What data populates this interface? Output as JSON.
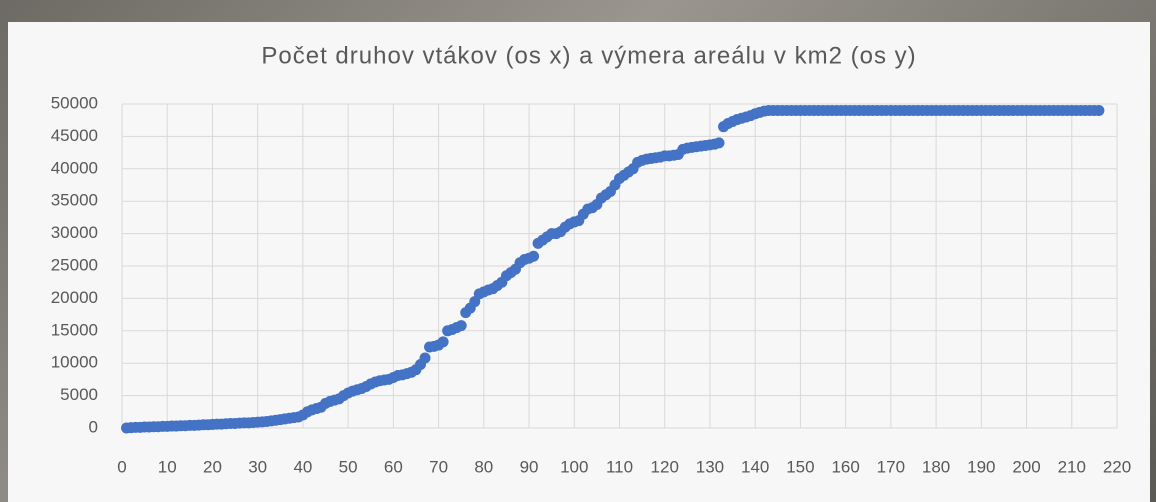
{
  "chart_data": {
    "type": "scatter",
    "title": "Počet druhov vtákov (os x) a výmera areálu v km2 (os y)",
    "x": [
      1,
      2,
      3,
      4,
      5,
      6,
      7,
      8,
      9,
      10,
      11,
      12,
      13,
      14,
      15,
      16,
      17,
      18,
      19,
      20,
      21,
      22,
      23,
      24,
      25,
      26,
      27,
      28,
      29,
      30,
      31,
      32,
      33,
      34,
      35,
      36,
      37,
      38,
      39,
      40,
      41,
      42,
      43,
      44,
      45,
      46,
      47,
      48,
      49,
      50,
      51,
      52,
      53,
      54,
      55,
      56,
      57,
      58,
      59,
      60,
      61,
      62,
      63,
      64,
      65,
      66,
      67,
      68,
      69,
      70,
      71,
      72,
      73,
      74,
      75,
      76,
      77,
      78,
      79,
      80,
      81,
      82,
      83,
      84,
      85,
      86,
      87,
      88,
      89,
      90,
      91,
      92,
      93,
      94,
      95,
      96,
      97,
      98,
      99,
      100,
      101,
      102,
      103,
      104,
      105,
      106,
      107,
      108,
      109,
      110,
      111,
      112,
      113,
      114,
      115,
      116,
      117,
      118,
      119,
      120,
      121,
      122,
      123,
      124,
      125,
      126,
      127,
      128,
      129,
      130,
      131,
      132,
      133,
      134,
      135,
      136,
      137,
      138,
      139,
      140,
      141,
      142,
      143,
      144,
      145,
      146,
      147,
      148,
      149,
      150,
      151,
      152,
      153,
      154,
      155,
      156,
      157,
      158,
      159,
      160,
      161,
      162,
      163,
      164,
      165,
      166,
      167,
      168,
      169,
      170,
      171,
      172,
      173,
      174,
      175,
      176,
      177,
      178,
      179,
      180,
      181,
      182,
      183,
      184,
      185,
      186,
      187,
      188,
      189,
      190,
      191,
      192,
      193,
      194,
      195,
      196,
      197,
      198,
      199,
      200,
      201,
      202,
      203,
      204,
      205,
      206,
      207,
      208,
      209,
      210,
      211,
      212,
      213,
      214,
      215,
      216
    ],
    "values": [
      0,
      50,
      100,
      100,
      150,
      150,
      200,
      200,
      250,
      250,
      300,
      300,
      350,
      350,
      400,
      400,
      450,
      500,
      500,
      550,
      600,
      600,
      650,
      700,
      700,
      750,
      800,
      800,
      850,
      900,
      950,
      1000,
      1100,
      1200,
      1300,
      1400,
      1500,
      1600,
      1700,
      2000,
      2500,
      2800,
      3000,
      3200,
      3800,
      4100,
      4300,
      4500,
      5000,
      5400,
      5700,
      5900,
      6100,
      6400,
      6800,
      7100,
      7300,
      7400,
      7500,
      7800,
      8100,
      8200,
      8400,
      8600,
      9000,
      9800,
      10800,
      12500,
      12600,
      12800,
      13300,
      15000,
      15200,
      15500,
      15800,
      17800,
      18500,
      19500,
      20700,
      21000,
      21300,
      21500,
      22000,
      22500,
      23500,
      24000,
      24500,
      25500,
      26000,
      26200,
      26500,
      28500,
      29000,
      29500,
      30000,
      30000,
      30300,
      31000,
      31500,
      31800,
      32000,
      33000,
      33800,
      34000,
      34500,
      35500,
      36000,
      36500,
      37500,
      38500,
      39000,
      39500,
      40000,
      41000,
      41300,
      41500,
      41600,
      41700,
      41800,
      42000,
      42000,
      42100,
      42200,
      43000,
      43200,
      43300,
      43400,
      43500,
      43600,
      43700,
      43800,
      44000,
      46500,
      47000,
      47300,
      47600,
      47800,
      48000,
      48200,
      48500,
      48700,
      48900,
      49000,
      49000,
      49000,
      49000,
      49000,
      49000,
      49000,
      49000,
      49000,
      49000,
      49000,
      49000,
      49000,
      49000,
      49000,
      49000,
      49000,
      49000,
      49000,
      49000,
      49000,
      49000,
      49000,
      49000,
      49000,
      49000,
      49000,
      49000,
      49000,
      49000,
      49000,
      49000,
      49000,
      49000,
      49000,
      49000,
      49000,
      49000,
      49000,
      49000,
      49000,
      49000,
      49000,
      49000,
      49000,
      49000,
      49000,
      49000,
      49000,
      49000,
      49000,
      49000,
      49000,
      49000,
      49000,
      49000,
      49000,
      49000,
      49000,
      49000,
      49000,
      49000,
      49000,
      49000,
      49000,
      49000,
      49000,
      49000,
      49000,
      49000,
      49000,
      49000,
      49000,
      49000
    ],
    "color": "#4472c4",
    "xlim": [
      0,
      220
    ],
    "xticks": [
      0,
      10,
      20,
      30,
      40,
      50,
      60,
      70,
      80,
      90,
      100,
      110,
      120,
      130,
      140,
      150,
      160,
      170,
      180,
      190,
      200,
      210,
      220
    ],
    "ylim": [
      0,
      50000
    ],
    "yticks": [
      0,
      5000,
      10000,
      15000,
      20000,
      25000,
      30000,
      35000,
      40000,
      45000,
      50000
    ],
    "grid": true
  }
}
